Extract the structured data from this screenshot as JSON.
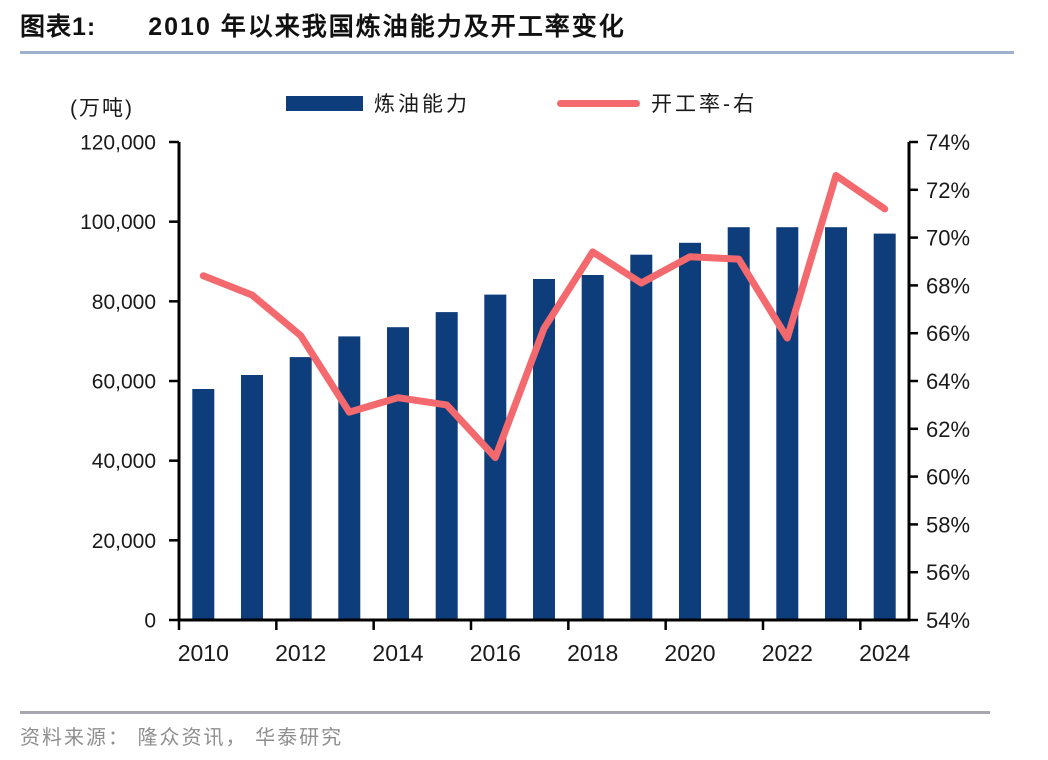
{
  "figure": {
    "label": "图表1:",
    "title": "2010 年以来我国炼油能力及开工率变化",
    "unit_label": "(万吨)",
    "source": "资料来源： 隆众资讯， 华泰研究"
  },
  "legend": [
    {
      "label": "炼油能力",
      "type": "bar",
      "color": "#0e3d7b"
    },
    {
      "label": "开工率-右",
      "type": "line",
      "color": "#f4696d"
    }
  ],
  "colors": {
    "bar": "#0e3d7b",
    "line": "#f4696d",
    "axis": "#000000",
    "title_rule": "#9db1cd",
    "source_rule": "#a6a7b3",
    "source_text": "#8f8f8f"
  },
  "chart_data": {
    "type": "bar+line",
    "title": "2010 年以来我国炼油能力及开工率变化",
    "categories": [
      2010,
      2011,
      2012,
      2013,
      2014,
      2015,
      2016,
      2017,
      2018,
      2019,
      2020,
      2021,
      2022,
      2023,
      2024
    ],
    "series": [
      {
        "name": "炼油能力",
        "type": "bar",
        "axis": "left",
        "color": "#0e3d7b",
        "values": [
          58000,
          61500,
          66000,
          71200,
          73500,
          77300,
          81700,
          85600,
          86600,
          91700,
          94700,
          98600,
          98600,
          98600,
          97000
        ]
      },
      {
        "name": "开工率-右",
        "type": "line",
        "axis": "right",
        "color": "#f4696d",
        "values_pct": [
          68.4,
          67.6,
          65.9,
          62.7,
          63.3,
          63.0,
          60.8,
          66.2,
          69.4,
          68.1,
          69.2,
          69.1,
          65.8,
          72.6,
          71.2
        ]
      }
    ],
    "left_axis": {
      "title": "(万吨)",
      "min": 0,
      "max": 120000,
      "step": 20000,
      "tick_labels": [
        "120,000",
        "100,000",
        "80,000",
        "60,000",
        "40,000",
        "20,000",
        "0"
      ]
    },
    "right_axis": {
      "min": 54,
      "max": 74,
      "step": 2,
      "unit": "%",
      "tick_labels": [
        "74%",
        "72%",
        "70%",
        "68%",
        "66%",
        "64%",
        "62%",
        "60%",
        "58%",
        "56%",
        "54%"
      ]
    },
    "x_axis": {
      "tick_labels": [
        "2010",
        "2012",
        "2014",
        "2016",
        "2018",
        "2020",
        "2022",
        "2024"
      ],
      "label_interval": 2
    },
    "legend_position": "top",
    "grid": false
  }
}
